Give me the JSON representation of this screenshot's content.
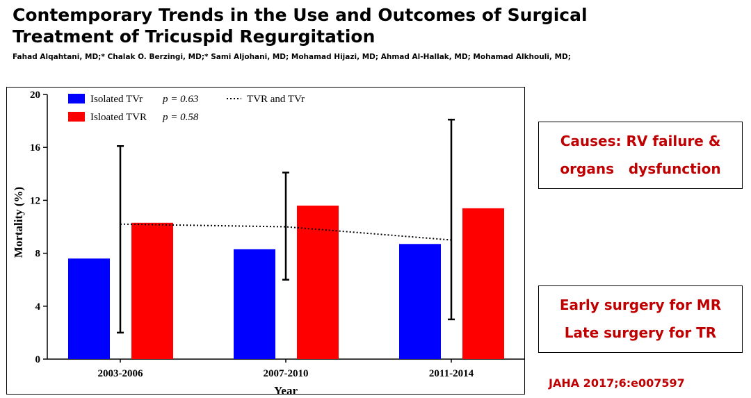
{
  "slide": {
    "title_line1": "Contemporary Trends in the Use and Outcomes of Surgical",
    "title_line2": "Treatment of Tricuspid Regurgitation",
    "authors": "Fahad Alqahtani, MD;* Chalak O. Berzingi, MD;* Sami Aljohani, MD; Mohamad Hijazi, MD; Ahmad Al-Hallak, MD; Mohamad Alkhouli, MD;",
    "callout1_line1": "Causes: RV failure &",
    "callout1_line2": "organs   dysfunction",
    "callout2_line1": "Early surgery for MR",
    "callout2_line2": "Late surgery for TR",
    "citation": "JAHA 2017;6:e007597",
    "accent_color": "#c00000"
  },
  "chart_data": {
    "type": "bar",
    "title": "",
    "xlabel": "Year",
    "ylabel": "Mortality (%)",
    "ylim": [
      0,
      20
    ],
    "yticks": [
      0,
      4,
      8,
      12,
      16,
      20
    ],
    "grid": false,
    "categories": [
      "2003-2006",
      "2007-2010",
      "2011-2014"
    ],
    "series": [
      {
        "name": "Isolated TVr",
        "p_label": "p = 0.63",
        "color": "#0000ff",
        "values": [
          7.6,
          8.3,
          8.7
        ]
      },
      {
        "name": "Isloated TVR",
        "p_label": "p = 0.58",
        "color": "#ff0000",
        "values": [
          10.3,
          11.6,
          11.4
        ]
      }
    ],
    "trend": {
      "name": "TVR and TVr",
      "style": "dotted",
      "values": [
        10.2,
        10.0,
        9.0
      ]
    },
    "error_bars": [
      {
        "low": 2.0,
        "high": 16.1
      },
      {
        "low": 6.0,
        "high": 14.1
      },
      {
        "low": 3.0,
        "high": 18.1
      }
    ],
    "legend_position": "top-left"
  }
}
